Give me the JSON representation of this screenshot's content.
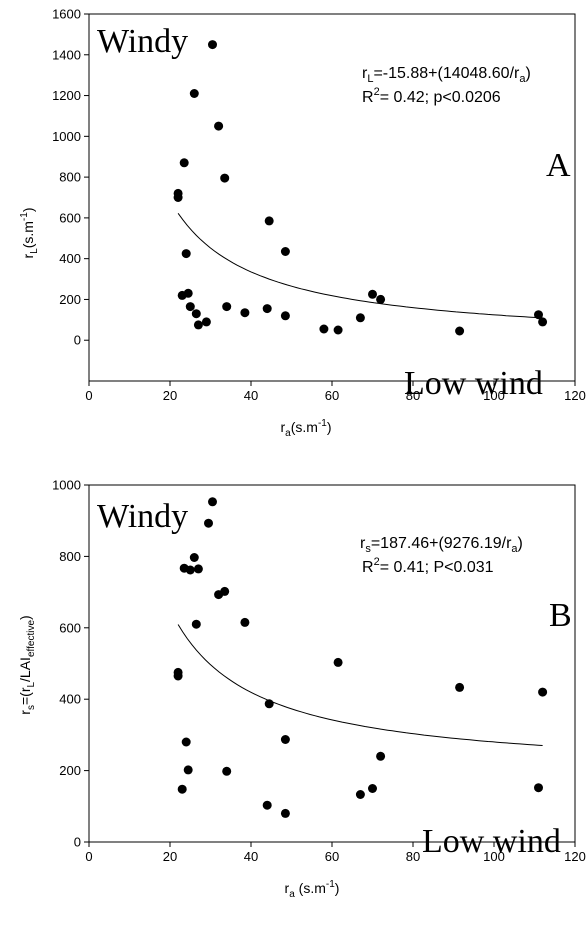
{
  "chart_data": [
    {
      "type": "scatter",
      "panel_label": "A",
      "xlabel": "r_a(s.m^-1)",
      "xlabel_parts": {
        "base": "r",
        "sub": "a",
        "unit": "(s.m",
        "sup": "-1",
        "close": ")"
      },
      "ylabel": "r_L(s.m^-1)",
      "ylabel_parts": {
        "base": "r",
        "sub": "L",
        "unit": "(s.m",
        "sup": "-1",
        "close": ")"
      },
      "xlim": [
        0,
        120
      ],
      "ylim": [
        -200,
        1600
      ],
      "xticks": [
        0,
        20,
        40,
        60,
        80,
        100,
        120
      ],
      "yticks": [
        0,
        200,
        400,
        600,
        800,
        1000,
        1200,
        1400,
        1600
      ],
      "grid": false,
      "annotations": {
        "windy": "Windy",
        "low_wind": "Low wind",
        "equation": {
          "base": "r",
          "sub": "L",
          "rest": "=-15.88+(14048.60/r",
          "sub2": "a",
          "close": ")"
        },
        "r2": {
          "base": "R",
          "sup": "2",
          "rest": "= 0.42; p<0.0206"
        }
      },
      "fit": {
        "a": -15.88,
        "b": 14048.6,
        "x_range": [
          22,
          112
        ]
      },
      "points": [
        [
          22,
          720
        ],
        [
          22,
          700
        ],
        [
          23,
          220
        ],
        [
          23.5,
          870
        ],
        [
          24,
          425
        ],
        [
          24.5,
          230
        ],
        [
          25,
          165
        ],
        [
          26,
          1210
        ],
        [
          26.5,
          130
        ],
        [
          27,
          75
        ],
        [
          29,
          90
        ],
        [
          30.5,
          1450
        ],
        [
          32,
          1050
        ],
        [
          33.5,
          795
        ],
        [
          34,
          165
        ],
        [
          38.5,
          135
        ],
        [
          44,
          155
        ],
        [
          44.5,
          585
        ],
        [
          48.5,
          435
        ],
        [
          48.5,
          120
        ],
        [
          58,
          55
        ],
        [
          61.5,
          50
        ],
        [
          67,
          110
        ],
        [
          70,
          225
        ],
        [
          72,
          200
        ],
        [
          91.5,
          45
        ],
        [
          111,
          125
        ],
        [
          112,
          90
        ]
      ]
    },
    {
      "type": "scatter",
      "panel_label": "B",
      "xlabel": "r_a (s.m^-1)",
      "xlabel_parts": {
        "base": "r",
        "sub": "a",
        "unit": " (s.m",
        "sup": "-1",
        "close": ")"
      },
      "ylabel": "r_s=(r_L/LAI_effective)",
      "ylabel_parts": {
        "base": "r",
        "sub": "s",
        "mid": "=(r",
        "sub2": "L",
        "mid2": "/LAI",
        "sub3": "effective",
        "close": ")"
      },
      "xlim": [
        0,
        120
      ],
      "ylim": [
        0,
        1000
      ],
      "xticks": [
        0,
        20,
        40,
        60,
        80,
        100,
        120
      ],
      "yticks": [
        0,
        200,
        400,
        600,
        800,
        1000
      ],
      "grid": false,
      "annotations": {
        "windy": "Windy",
        "low_wind": "Low wind",
        "equation": {
          "base": "r",
          "sub": "s",
          "rest": "=187.46+(9276.19/r",
          "sub2": "a",
          "close": ")"
        },
        "r2": {
          "base": "R",
          "sup": "2",
          "rest": "= 0.41; P<0.031"
        }
      },
      "fit": {
        "a": 187.46,
        "b": 9276.19,
        "x_range": [
          22,
          112
        ]
      },
      "points": [
        [
          22,
          475
        ],
        [
          22,
          465
        ],
        [
          23,
          148
        ],
        [
          23.5,
          767
        ],
        [
          24,
          280
        ],
        [
          24.5,
          202
        ],
        [
          25,
          762
        ],
        [
          26,
          797
        ],
        [
          26.5,
          610
        ],
        [
          27,
          765
        ],
        [
          29.5,
          893
        ],
        [
          30.5,
          953
        ],
        [
          32,
          693
        ],
        [
          33.5,
          702
        ],
        [
          34,
          198
        ],
        [
          38.5,
          615
        ],
        [
          44,
          103
        ],
        [
          44.5,
          387
        ],
        [
          48.5,
          287
        ],
        [
          48.5,
          80
        ],
        [
          61.5,
          503
        ],
        [
          67,
          133
        ],
        [
          70,
          150
        ],
        [
          72,
          240
        ],
        [
          91.5,
          433
        ],
        [
          111,
          152
        ],
        [
          112,
          420
        ]
      ]
    }
  ]
}
